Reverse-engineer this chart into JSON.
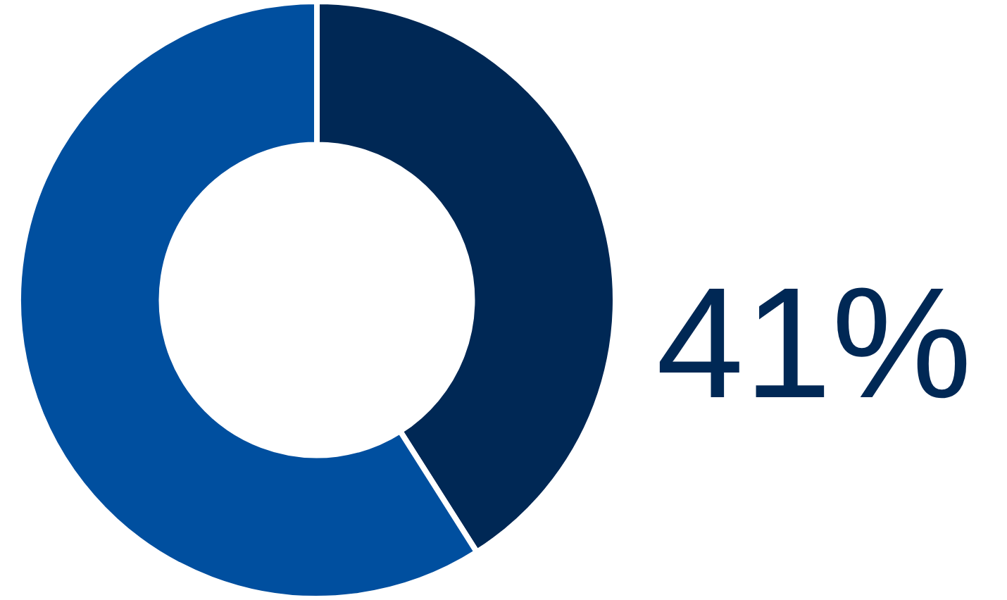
{
  "chart_data": {
    "type": "donut",
    "categories": [
      null,
      null
    ],
    "values": [
      41,
      59
    ],
    "colors": [
      "#002855",
      "#004f9f"
    ],
    "value_labels": [
      "41%",
      null
    ]
  }
}
